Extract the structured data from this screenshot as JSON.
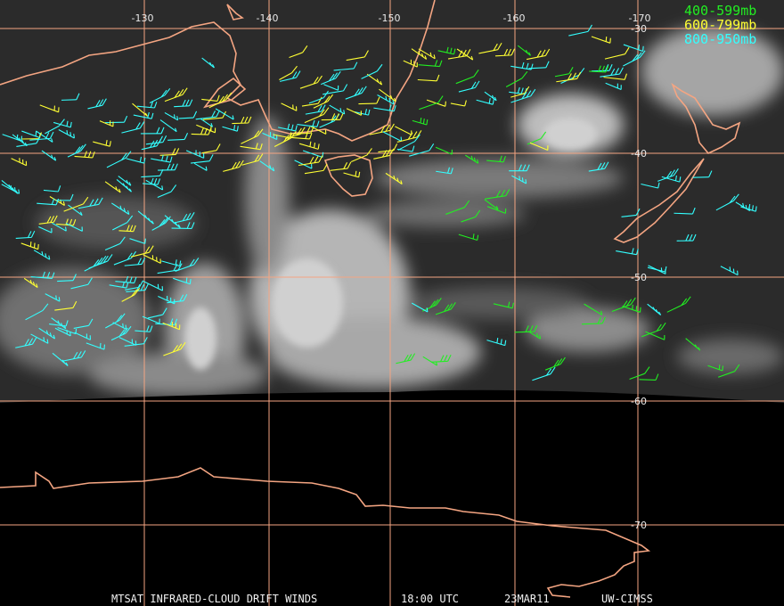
{
  "map": {
    "longitude_labels": [
      "-130",
      "-140",
      "-150",
      "-160",
      "-170"
    ],
    "latitude_labels": [
      "-30",
      "-40",
      "-50",
      "-60",
      "-70"
    ],
    "legend": [
      "400-599mb",
      "600-799mb",
      "800-950mb"
    ],
    "footer": {
      "product": "MTSAT INFRARED-CLOUD DRIFT WINDS",
      "time": "18:00 UTC",
      "date": "23MAR11",
      "source": "UW-CIMSS"
    }
  }
}
